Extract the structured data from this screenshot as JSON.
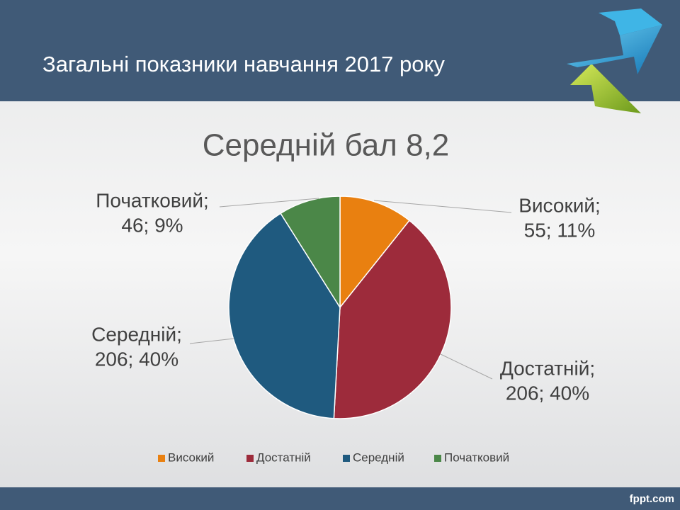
{
  "header": {
    "title": "Загальні показники навчання 2017 року"
  },
  "chart_data": {
    "type": "pie",
    "title": "Середній бал 8,2",
    "categories": [
      "Високий",
      "Достатній",
      "Середній",
      "Початковий"
    ],
    "values": [
      55,
      206,
      206,
      46
    ],
    "value_labels": [
      "55; 11%",
      "206; 40%",
      "206; 40%",
      "46; 9%"
    ],
    "label_titles": [
      "Високий;",
      "Достатній;",
      "Середній;",
      "Початковий;"
    ],
    "colors": [
      "#e98010",
      "#9d2b3b",
      "#1f5a7f",
      "#4b8748"
    ],
    "legend": "bottom"
  },
  "footer": {
    "brand": "fppt.com"
  }
}
